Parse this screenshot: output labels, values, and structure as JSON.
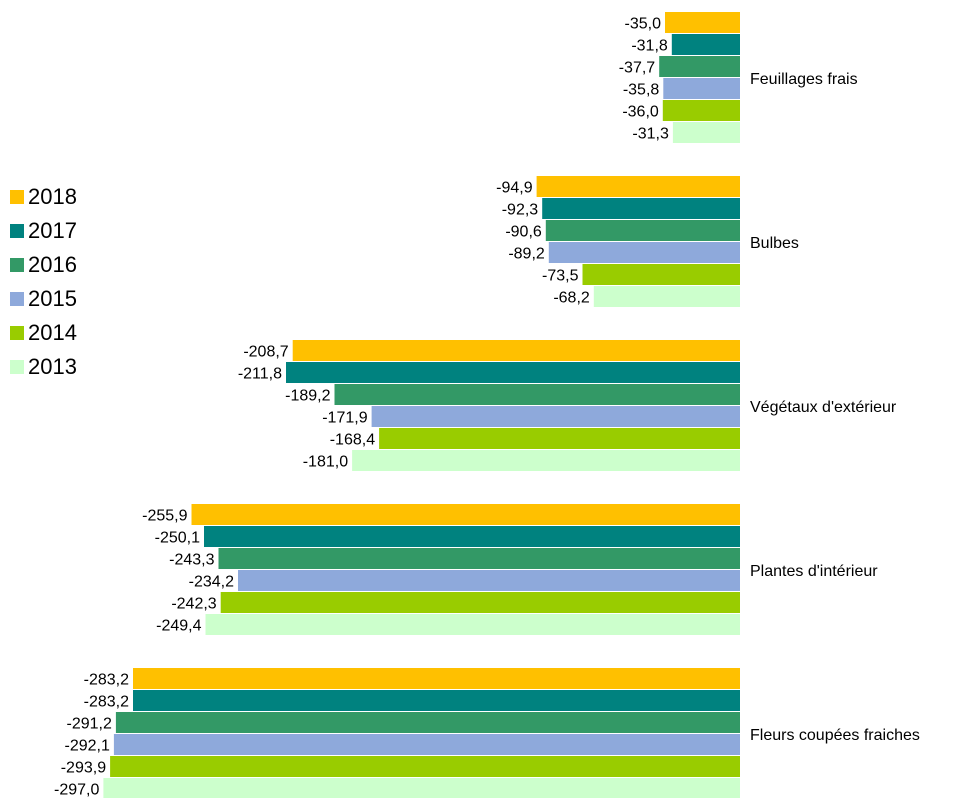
{
  "chart_data": {
    "type": "bar",
    "orientation": "horizontal",
    "categories": [
      "Feuillages frais",
      "Bulbes",
      "Végétaux d'extérieur",
      "Plantes d'intérieur",
      "Fleurs coupées fraiches"
    ],
    "series": [
      {
        "name": "2018",
        "color": "#FFC000",
        "values": [
          -35.0,
          -94.9,
          -208.7,
          -255.9,
          -283.2
        ],
        "labels": [
          "-35,0",
          "-94,9",
          "-208,7",
          "-255,9",
          "-283,2"
        ]
      },
      {
        "name": "2017",
        "color": "#00827F",
        "values": [
          -31.8,
          -92.3,
          -211.8,
          -250.1,
          -283.2
        ],
        "labels": [
          "-31,8",
          "-92,3",
          "-211,8",
          "-250,1",
          "-283,2"
        ]
      },
      {
        "name": "2016",
        "color": "#339966",
        "values": [
          -37.7,
          -90.6,
          -189.2,
          -243.3,
          -291.2
        ],
        "labels": [
          "-37,7",
          "-90,6",
          "-189,2",
          "-243,3",
          "-291,2"
        ]
      },
      {
        "name": "2015",
        "color": "#8EA9DB",
        "values": [
          -35.8,
          -89.2,
          -171.9,
          -234.2,
          -292.1
        ],
        "labels": [
          "-35,8",
          "-89,2",
          "-171,9",
          "-234,2",
          "-292,1"
        ]
      },
      {
        "name": "2014",
        "color": "#99CC00",
        "values": [
          -36.0,
          -73.5,
          -168.4,
          -242.3,
          -293.9
        ],
        "labels": [
          "-36,0",
          "-73,5",
          "-168,4",
          "-242,3",
          "-293,9"
        ]
      },
      {
        "name": "2013",
        "color": "#CCFFCC",
        "values": [
          -31.3,
          -68.2,
          -181.0,
          -249.4,
          -297.0
        ],
        "labels": [
          "-31,3",
          "-68,2",
          "-181,0",
          "-249,4",
          "-297,0"
        ]
      }
    ],
    "legend_position": "left",
    "grid": false,
    "axis_visible": false
  }
}
